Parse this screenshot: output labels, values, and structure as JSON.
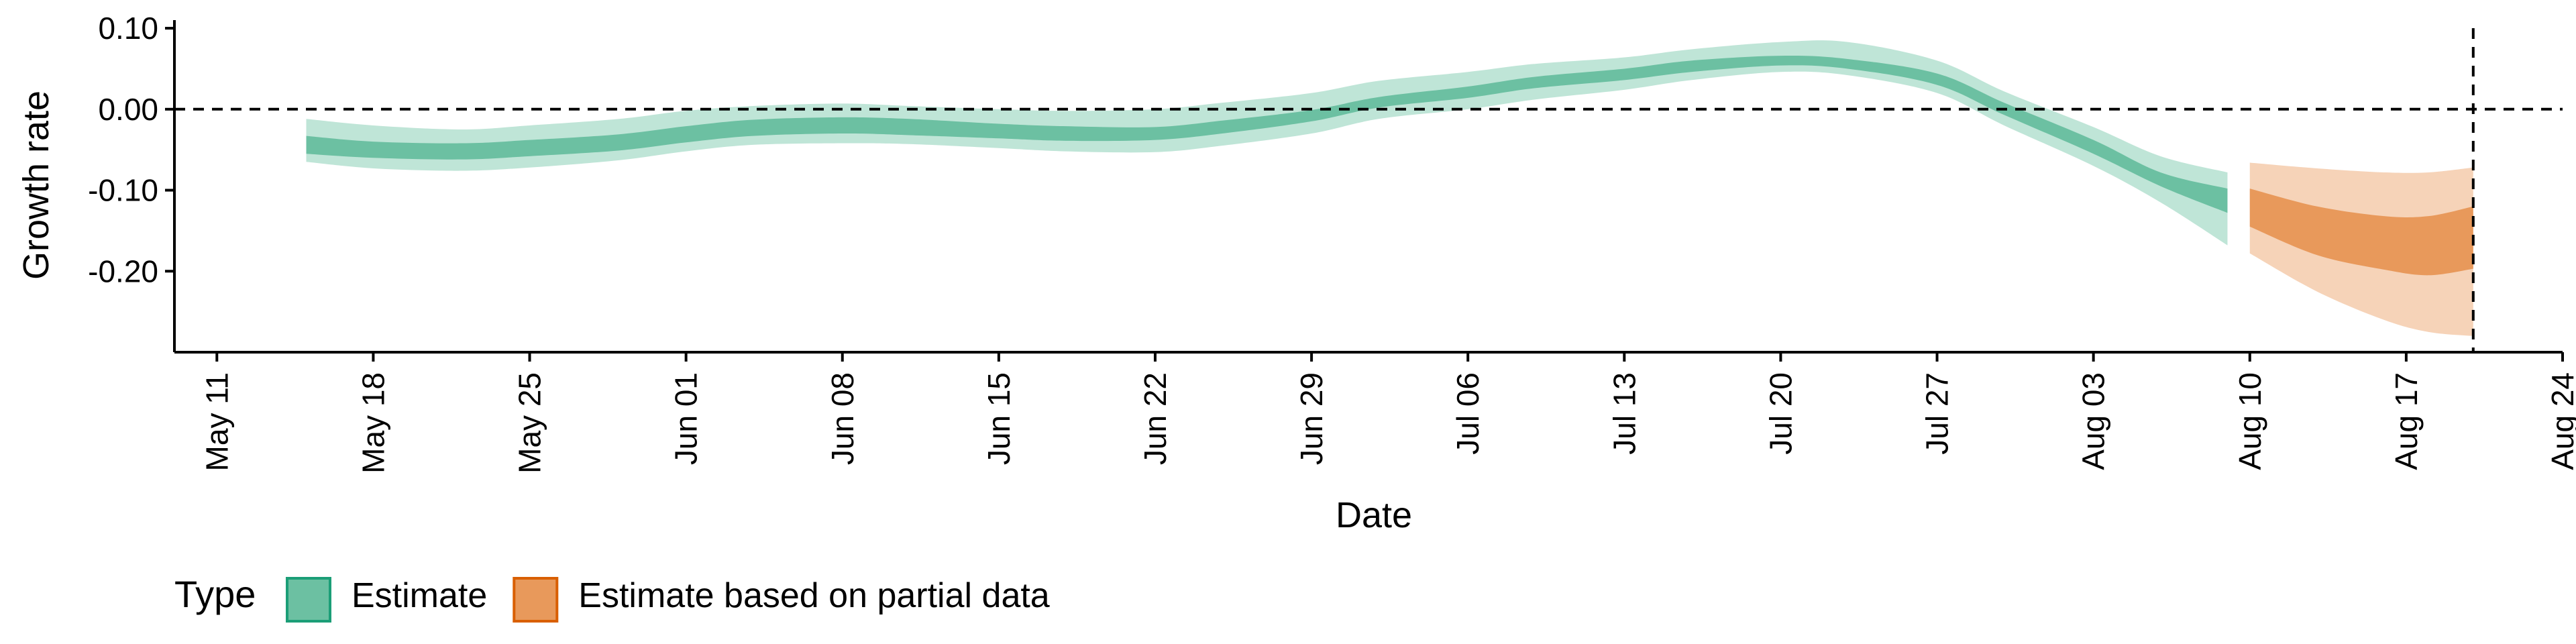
{
  "chart_data": {
    "type": "area",
    "xlabel": "Date",
    "ylabel": "Growth rate",
    "x_ticks": [
      "May 11",
      "May 18",
      "May 25",
      "Jun 01",
      "Jun 08",
      "Jun 15",
      "Jun 22",
      "Jun 29",
      "Jul 06",
      "Jul 13",
      "Jul 20",
      "Jul 27",
      "Aug 03",
      "Aug 10",
      "Aug 17",
      "Aug 24"
    ],
    "y_ticks": [
      0.1,
      0.0,
      -0.1,
      -0.2
    ],
    "y_tick_labels": [
      "0.10",
      "0.00",
      "-0.10",
      "-0.20"
    ],
    "xlim": [
      "2020-05-10",
      "2020-08-24"
    ],
    "ylim": [
      -0.3,
      0.11
    ],
    "grid": false,
    "reference_lines": {
      "horizontal_y": 0.0,
      "vertical_x": "2020-08-20"
    },
    "legend": {
      "title": "Type",
      "position": "bottom-left",
      "items": [
        {
          "label": "Estimate",
          "fill": "#6cc0a2",
          "stroke": "#1b9e77"
        },
        {
          "label": "Estimate based on partial data",
          "fill": "#e8995b",
          "stroke": "#d95f02"
        }
      ]
    },
    "series": [
      {
        "name": "Estimate",
        "color": "#1b9e77",
        "x": [
          "2020-05-15",
          "2020-05-18",
          "2020-05-22",
          "2020-05-25",
          "2020-05-29",
          "2020-06-01",
          "2020-06-04",
          "2020-06-08",
          "2020-06-11",
          "2020-06-15",
          "2020-06-18",
          "2020-06-22",
          "2020-06-25",
          "2020-06-29",
          "2020-07-02",
          "2020-07-06",
          "2020-07-09",
          "2020-07-13",
          "2020-07-16",
          "2020-07-20",
          "2020-07-23",
          "2020-07-27",
          "2020-07-30",
          "2020-08-03",
          "2020-08-06",
          "2020-08-09"
        ],
        "lower90": [
          -0.065,
          -0.073,
          -0.076,
          -0.072,
          -0.063,
          -0.052,
          -0.044,
          -0.042,
          -0.043,
          -0.048,
          -0.052,
          -0.053,
          -0.045,
          -0.03,
          -0.012,
          0.0,
          0.012,
          0.024,
          0.036,
          0.046,
          0.042,
          0.02,
          -0.02,
          -0.07,
          -0.115,
          -0.168
        ],
        "lower50": [
          -0.055,
          -0.06,
          -0.062,
          -0.058,
          -0.051,
          -0.041,
          -0.033,
          -0.03,
          -0.032,
          -0.036,
          -0.039,
          -0.038,
          -0.03,
          -0.015,
          0.002,
          0.014,
          0.026,
          0.036,
          0.046,
          0.054,
          0.05,
          0.03,
          -0.007,
          -0.055,
          -0.095,
          -0.128
        ],
        "upper50": [
          -0.033,
          -0.04,
          -0.042,
          -0.038,
          -0.031,
          -0.021,
          -0.013,
          -0.01,
          -0.012,
          -0.018,
          -0.021,
          -0.022,
          -0.014,
          -0.001,
          0.015,
          0.028,
          0.04,
          0.05,
          0.06,
          0.066,
          0.062,
          0.044,
          0.008,
          -0.038,
          -0.078,
          -0.098
        ],
        "upper90": [
          -0.012,
          -0.02,
          -0.025,
          -0.02,
          -0.012,
          -0.002,
          0.004,
          0.007,
          0.004,
          0.0,
          -0.002,
          0.0,
          0.008,
          0.02,
          0.035,
          0.046,
          0.056,
          0.064,
          0.074,
          0.083,
          0.083,
          0.06,
          0.022,
          -0.022,
          -0.058,
          -0.078
        ]
      },
      {
        "name": "Estimate based on partial data",
        "color": "#d95f02",
        "x": [
          "2020-08-10",
          "2020-08-13",
          "2020-08-16",
          "2020-08-18",
          "2020-08-20"
        ],
        "lower90": [
          -0.178,
          -0.225,
          -0.26,
          -0.275,
          -0.28
        ],
        "lower50": [
          -0.145,
          -0.18,
          -0.198,
          -0.205,
          -0.197
        ],
        "upper50": [
          -0.098,
          -0.12,
          -0.132,
          -0.132,
          -0.12
        ],
        "upper90": [
          -0.066,
          -0.073,
          -0.078,
          -0.078,
          -0.072
        ]
      }
    ]
  }
}
